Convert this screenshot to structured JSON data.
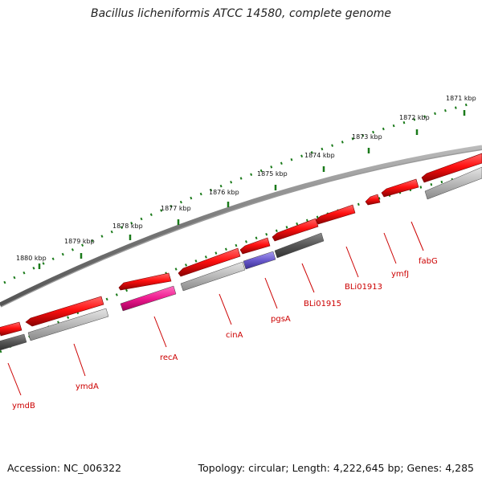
{
  "title": "Bacillus licheniformis ATCC 14580, complete genome",
  "footer": {
    "accession": "Accession: NC_006322",
    "summary": "Topology: circular; Length: 4,222,645 bp; Genes: 4,285"
  },
  "colors": {
    "forward_gene": "#e00000",
    "reverse_gene": "#808080",
    "rRNA_gene": "#e0208a",
    "other_gene": "#6655cc",
    "backbone": "#707070",
    "tick": "#1a7a1a",
    "label": "#cc0000"
  },
  "ruler": {
    "labels": [
      "1880 kbp",
      "1879 kbp",
      "1878 kbp",
      "1877 kbp",
      "1876 kbp",
      "1875 kbp",
      "1874 kbp",
      "1873 kbp",
      "1872 kbp",
      "1871 kbp"
    ]
  },
  "gene_labels": [
    "ymdB",
    "ymdA",
    "recA",
    "cinA",
    "pgsA",
    "BLi01915",
    "BLi01913",
    "ymfJ",
    "fabG"
  ]
}
